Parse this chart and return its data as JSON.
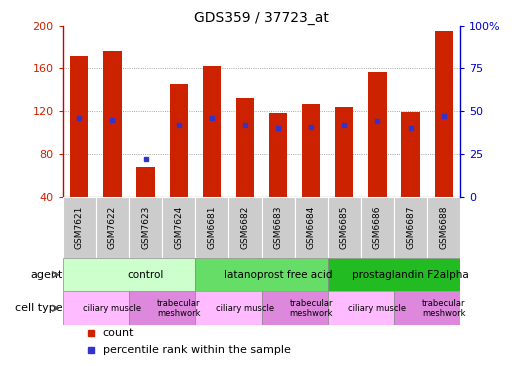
{
  "title": "GDS359 / 37723_at",
  "samples": [
    "GSM7621",
    "GSM7622",
    "GSM7623",
    "GSM7624",
    "GSM6681",
    "GSM6682",
    "GSM6683",
    "GSM6684",
    "GSM6685",
    "GSM6686",
    "GSM6687",
    "GSM6688"
  ],
  "counts": [
    172,
    176,
    68,
    145,
    162,
    132,
    118,
    127,
    124,
    157,
    119,
    195
  ],
  "percentile_ranks": [
    46,
    45,
    22,
    42,
    46,
    42,
    40,
    41,
    42,
    44,
    40,
    47
  ],
  "ylim": [
    40,
    200
  ],
  "y_ticks_left": [
    40,
    80,
    120,
    160,
    200
  ],
  "right_y_ticks": [
    0,
    25,
    50,
    75,
    100
  ],
  "right_ylim": [
    0,
    100
  ],
  "bar_color": "#cc2200",
  "dot_color": "#3333cc",
  "agent_groups": [
    {
      "label": "control",
      "start": 0,
      "end": 4,
      "color": "#ccffcc"
    },
    {
      "label": "latanoprost free acid",
      "start": 4,
      "end": 8,
      "color": "#66dd66"
    },
    {
      "label": "prostaglandin F2alpha",
      "start": 8,
      "end": 12,
      "color": "#22bb22"
    }
  ],
  "cell_type_groups": [
    {
      "label": "ciliary muscle",
      "start": 0,
      "end": 2,
      "color": "#ffbbff"
    },
    {
      "label": "trabecular\nmeshwork",
      "start": 2,
      "end": 4,
      "color": "#dd88dd"
    },
    {
      "label": "ciliary muscle",
      "start": 4,
      "end": 6,
      "color": "#ffbbff"
    },
    {
      "label": "trabecular\nmeshwork",
      "start": 6,
      "end": 8,
      "color": "#dd88dd"
    },
    {
      "label": "ciliary muscle",
      "start": 8,
      "end": 10,
      "color": "#ffbbff"
    },
    {
      "label": "trabecular\nmeshwork",
      "start": 10,
      "end": 12,
      "color": "#dd88dd"
    }
  ],
  "legend_count_label": "count",
  "legend_percentile_label": "percentile rank within the sample",
  "agent_label": "agent",
  "cell_type_label": "cell type",
  "background_color": "#ffffff",
  "grid_color": "#888888",
  "bar_width": 0.55,
  "xtick_box_color": "#cccccc",
  "left_spine_color": "#cc0000",
  "right_spine_color": "#0000cc"
}
